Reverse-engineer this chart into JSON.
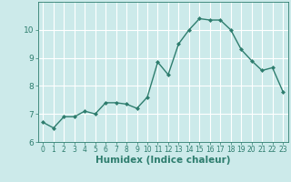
{
  "xlabel": "Humidex (Indice chaleur)",
  "x_values": [
    0,
    1,
    2,
    3,
    4,
    5,
    6,
    7,
    8,
    9,
    10,
    11,
    12,
    13,
    14,
    15,
    16,
    17,
    18,
    19,
    20,
    21,
    22,
    23
  ],
  "y_values": [
    6.7,
    6.5,
    6.9,
    6.9,
    7.1,
    7.0,
    7.4,
    7.4,
    7.35,
    7.2,
    7.6,
    8.85,
    8.4,
    9.5,
    10.0,
    10.4,
    10.35,
    10.35,
    10.0,
    9.3,
    8.9,
    8.55,
    8.65,
    7.8
  ],
  "line_color": "#2e7d6e",
  "marker": "D",
  "marker_size": 2.0,
  "background_color": "#cceaea",
  "grid_color": "#ffffff",
  "tick_color": "#2e7d6e",
  "label_color": "#2e7d6e",
  "xlim": [
    -0.5,
    23.5
  ],
  "ylim": [
    6.0,
    11.0
  ],
  "yticks": [
    6,
    7,
    8,
    9,
    10
  ],
  "xticks": [
    0,
    1,
    2,
    3,
    4,
    5,
    6,
    7,
    8,
    9,
    10,
    11,
    12,
    13,
    14,
    15,
    16,
    17,
    18,
    19,
    20,
    21,
    22,
    23
  ],
  "linewidth": 1.0,
  "xlabel_fontsize": 7.5,
  "tick_fontsize": 6.5
}
